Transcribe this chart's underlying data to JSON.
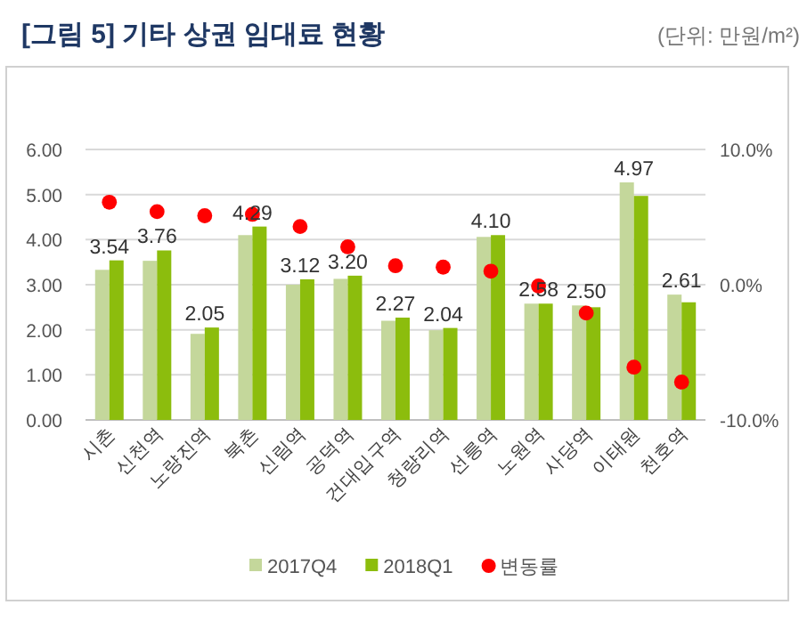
{
  "chart_data": {
    "type": "bar",
    "title": "[그림 5] 기타 상권 임대료 현황",
    "subtitle": "(단위: 만원/m²)",
    "categories": [
      "시촌",
      "신천역",
      "노량진역",
      "북촌",
      "신림역",
      "공덕역",
      "건대입구역",
      "청량리역",
      "선릉역",
      "노원역",
      "사당역",
      "이태원",
      "천호역"
    ],
    "series": [
      {
        "name": "2017Q4",
        "color": "#c4d79b",
        "values": [
          3.33,
          3.53,
          1.91,
          4.1,
          3.0,
          3.13,
          2.2,
          1.99,
          4.06,
          2.58,
          2.54,
          5.27,
          2.78
        ]
      },
      {
        "name": "2018Q1",
        "color": "#8cbd0d",
        "values": [
          3.54,
          3.76,
          2.05,
          4.29,
          3.12,
          3.2,
          2.27,
          2.04,
          4.1,
          2.58,
          2.5,
          4.97,
          2.61
        ],
        "value_labels": [
          "3.54",
          "3.76",
          "2.05",
          "4.29",
          "3.12",
          "3.20",
          "2.27",
          "2.04",
          "4.10",
          "2.58",
          "2.50",
          "4.97",
          "2.61"
        ]
      },
      {
        "name": "변동률",
        "type": "scatter",
        "axis": "y2",
        "marker": "circle",
        "color": "#ff0000",
        "values": [
          6.1,
          5.4,
          5.1,
          5.2,
          4.3,
          2.8,
          1.4,
          1.3,
          1.0,
          -0.1,
          -2.1,
          -6.1,
          -7.2
        ]
      }
    ],
    "ylim": [
      0,
      6
    ],
    "yticks": [
      {
        "value": 0,
        "label": "0.00"
      },
      {
        "value": 1,
        "label": "1.00"
      },
      {
        "value": 2,
        "label": "2.00"
      },
      {
        "value": 3,
        "label": "3.00"
      },
      {
        "value": 4,
        "label": "4.00"
      },
      {
        "value": 5,
        "label": "5.00"
      },
      {
        "value": 6,
        "label": "6.00"
      }
    ],
    "y2lim": [
      -10,
      10
    ],
    "y2ticks": [
      {
        "value": -10,
        "label": "-10.0%"
      },
      {
        "value": 0,
        "label": "0.0%"
      },
      {
        "value": 10,
        "label": "10.0%"
      }
    ],
    "grid": "y",
    "legend": "bottom"
  }
}
